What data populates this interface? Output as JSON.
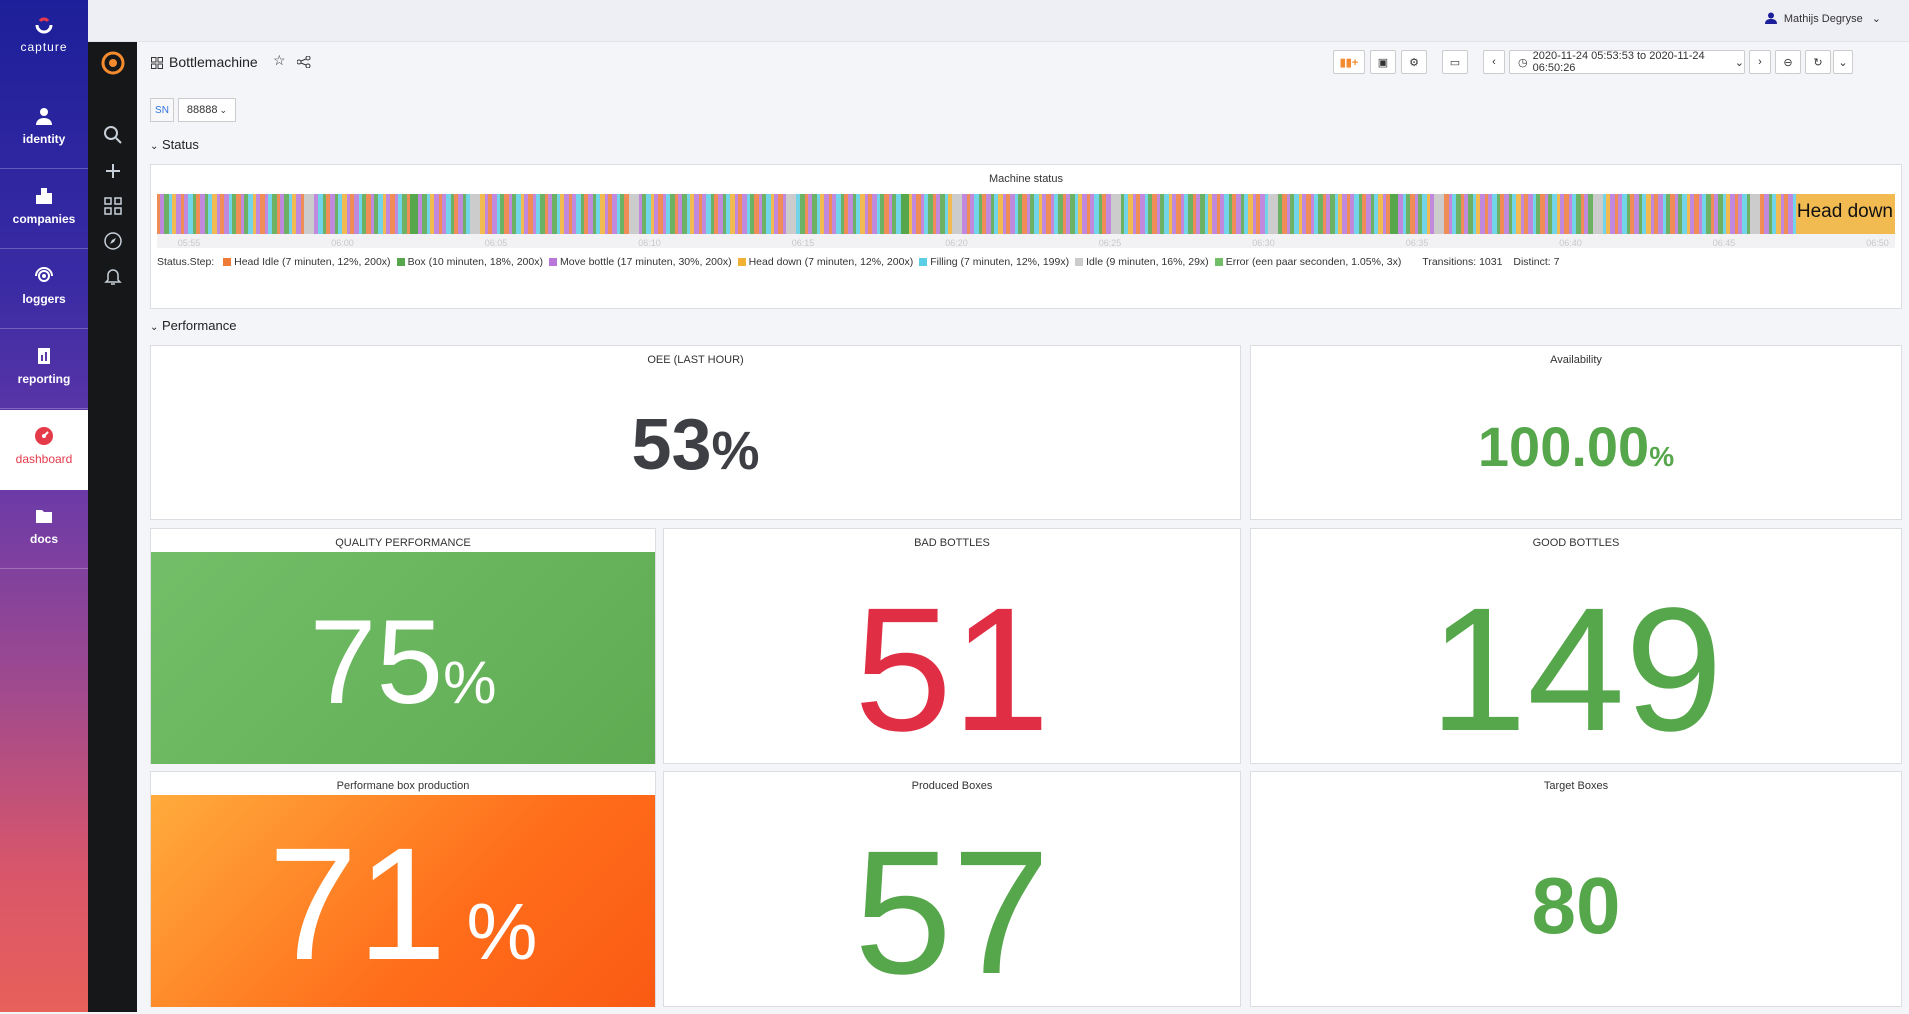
{
  "capture_nav": {
    "logo_text": "capture",
    "items": [
      {
        "label": "identity",
        "icon": "person-icon"
      },
      {
        "label": "companies",
        "icon": "buildings-icon"
      },
      {
        "label": "loggers",
        "icon": "signal-icon"
      },
      {
        "label": "reporting",
        "icon": "report-icon"
      },
      {
        "label": "dashboard",
        "icon": "gauge-icon"
      },
      {
        "label": "docs",
        "icon": "folder-icon"
      }
    ],
    "active": "dashboard"
  },
  "topbar": {
    "user_name": "Mathijs Degryse"
  },
  "dashboard": {
    "title": "Bottlemachine",
    "time_range": "2020-11-24 05:53:53 to 2020-11-24 06:50:26",
    "variable_label": "SN",
    "variable_value": "88888"
  },
  "rows": {
    "status": "Status",
    "performance": "Performance"
  },
  "machine_status": {
    "title": "Machine status",
    "current_value": "Head down",
    "ticks": [
      "05:55",
      "06:00",
      "06:05",
      "06:10",
      "06:15",
      "06:20",
      "06:25",
      "06:30",
      "06:35",
      "06:40",
      "06:45",
      "06:50"
    ],
    "legend_prefix": "Status.Step:",
    "legend": [
      {
        "label": "Head Idle (7 minuten, 12%, 200x)",
        "color": "#f07b39"
      },
      {
        "label": "Box (10 minuten, 18%, 200x)",
        "color": "#56a64b"
      },
      {
        "label": "Move bottle (17 minuten, 30%, 200x)",
        "color": "#b877d9"
      },
      {
        "label": "Head down (7 minuten, 12%, 200x)",
        "color": "#f2b134"
      },
      {
        "label": "Filling (7 minuten, 12%, 199x)",
        "color": "#5ccfe6"
      },
      {
        "label": "Idle (9 minuten, 16%, 29x)",
        "color": "#cccccc"
      },
      {
        "label": "Error (een paar seconden, 1.05%, 3x)",
        "color": "#73bf69"
      }
    ],
    "transitions": "Transitions: 1031",
    "distinct": "Distinct: 7"
  },
  "stats": {
    "oee": {
      "title": "OEE (LAST HOUR)",
      "value": "53",
      "unit": "%",
      "color": "#3d3f44"
    },
    "availability": {
      "title": "Availability",
      "value": "100.00",
      "unit": "%",
      "color": "#56a64b"
    },
    "quality": {
      "title": "QUALITY PERFORMANCE",
      "value": "75",
      "unit": "%",
      "color": "#ffffff",
      "bg": "#6ab95c"
    },
    "bad_bottles": {
      "title": "BAD BOTTLES",
      "value": "51",
      "color": "#e02f44"
    },
    "good_bottles": {
      "title": "GOOD BOTTLES",
      "value": "149",
      "color": "#56a64b"
    },
    "box_perf": {
      "title": "Performane box production",
      "value": "71",
      "unit": "%",
      "color": "#ffffff",
      "bg": "#ff7a1f"
    },
    "produced_boxes": {
      "title": "Produced Boxes",
      "value": "57",
      "color": "#56a64b"
    },
    "target_boxes": {
      "title": "Target Boxes",
      "value": "80",
      "color": "#56a64b"
    }
  }
}
